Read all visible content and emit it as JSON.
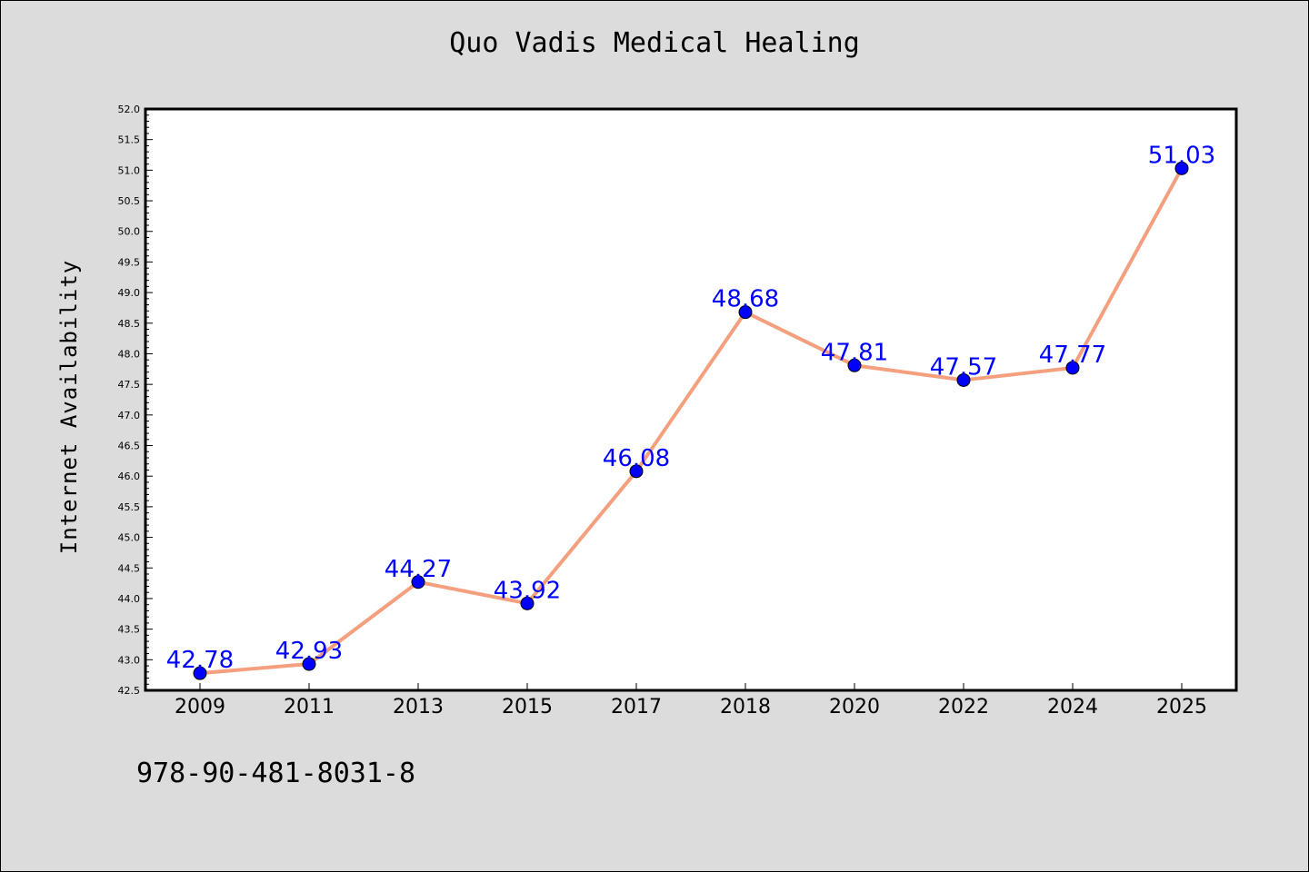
{
  "chart_data": {
    "type": "line",
    "title": "Quo Vadis Medical Healing",
    "xlabel": "",
    "ylabel": "Internet Availability",
    "categories": [
      "2009",
      "2011",
      "2013",
      "2015",
      "2017",
      "2018",
      "2020",
      "2022",
      "2024",
      "2025"
    ],
    "values": [
      42.78,
      42.93,
      44.27,
      43.92,
      46.08,
      48.68,
      47.81,
      47.57,
      47.77,
      51.03
    ],
    "data_labels": [
      "42.78",
      "42.93",
      "44.27",
      "43.92",
      "46.08",
      "48.68",
      "47.81",
      "47.57",
      "47.77",
      "51.03"
    ],
    "ylim": [
      42.5,
      52.0
    ],
    "y_ticks": [
      "42.5",
      "43.0",
      "43.5",
      "44.0",
      "44.5",
      "45.0",
      "45.5",
      "46.0",
      "46.5",
      "47.0",
      "47.5",
      "48.0",
      "48.5",
      "49.0",
      "49.5",
      "50.0",
      "50.5",
      "51.0",
      "51.5",
      "52.0"
    ],
    "grid": false,
    "legend": "none",
    "colors": {
      "line": "#f4a07e",
      "marker": "#0000ff",
      "label": "#0000ff",
      "background": "#dcdcdc",
      "plot_background": "#ffffff"
    }
  },
  "footer": {
    "code": "978-90-481-8031-8"
  }
}
